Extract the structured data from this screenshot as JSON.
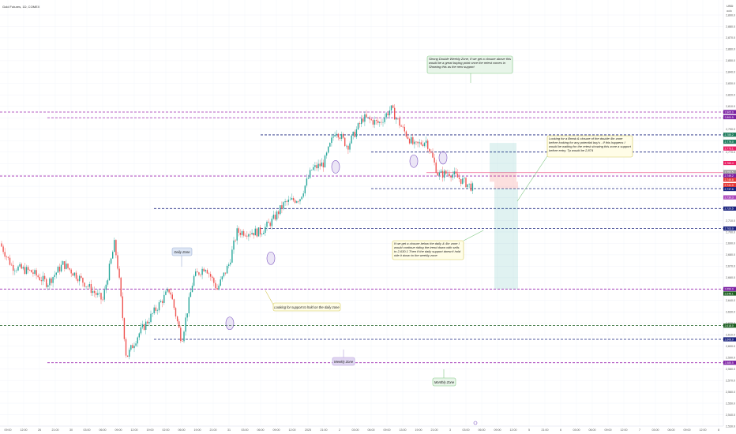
{
  "header": {
    "symbol": "Gold Futures, 1D, COMEX",
    "currency": "USD",
    "mode": "auto"
  },
  "colors": {
    "up": "#26a69a",
    "down": "#ef5350",
    "purple": "#9c27b0",
    "navy": "#1a237e",
    "green": "#1b5e20",
    "pink": "#e91e63",
    "note_yellow": "#fffde7",
    "note_green": "#e8f5e9",
    "note_purple": "#e1d7f2",
    "note_blue": "#dde6f5"
  },
  "chart_data": {
    "type": "candlestick",
    "y_ticks": [
      "2,890.0",
      "2,880.0",
      "2,870.0",
      "2,860.0",
      "2,850.0",
      "2,840.0",
      "2,830.0",
      "2,820.0",
      "2,810.0",
      "2,800.0",
      "2,790.0",
      "2,780.0",
      "2,770.0",
      "2,760.0",
      "2,750.0",
      "2,740.0",
      "2,730.0",
      "2,720.0",
      "2,710.0",
      "2,700.0",
      "2,690.0",
      "2,680.0",
      "2,670.0",
      "2,660.0",
      "2,650.0",
      "2,640.0",
      "2,630.0",
      "2,620.0",
      "2,610.0",
      "2,600.0",
      "2,590.0",
      "2,580.0",
      "2,570.0",
      "2,560.0",
      "2,550.0",
      "2,540.0",
      "2,530.0"
    ],
    "x_ticks": [
      "09:00",
      "12:00",
      "26",
      "21:00",
      "30",
      "03:00",
      "06:00",
      "09:00",
      "12:00",
      "19:00",
      "02:00",
      "06:00",
      "19:00",
      "21:00",
      "31",
      "03:00",
      "06:00",
      "09:00",
      "12:00",
      "2025",
      "21:00",
      "2",
      "03:00",
      "06:00",
      "09:00",
      "13:00",
      "19:00",
      "21:00",
      "3",
      "03:00",
      "06:00",
      "09:00",
      "12:00",
      "5",
      "21:00",
      "6",
      "03:00",
      "06:00",
      "09:00",
      "12:00",
      "7",
      "03:00",
      "06:00",
      "09:00",
      "12:00",
      "8"
    ],
    "candles_ohlc_summary": "intraday gold futures price rising from about 2,575 to 2,790 then declining to about 2,738",
    "zones": [
      {
        "price": 2805.0,
        "kind": "weekly",
        "color": "purple"
      },
      {
        "price": 2800.0,
        "kind": "daily-weekly",
        "color": "purple"
      },
      {
        "price": 2785.0,
        "kind": "level",
        "color": "navy"
      },
      {
        "price": 2770.0,
        "kind": "level",
        "color": "navy"
      },
      {
        "price": 2752.0,
        "kind": "4hr",
        "color": "pink"
      },
      {
        "price": 2749.0,
        "kind": "4hr",
        "color": "purple"
      },
      {
        "price": 2738.0,
        "kind": "daily",
        "color": "navy"
      },
      {
        "price": 2720.5,
        "kind": "daily",
        "color": "navy"
      },
      {
        "price": 2703.0,
        "kind": "daily",
        "color": "navy"
      },
      {
        "price": 2650.0,
        "kind": "weekly",
        "color": "purple"
      },
      {
        "price": 2618.0,
        "kind": "monthly",
        "color": "green"
      },
      {
        "price": 2606.0,
        "kind": "daily",
        "color": "navy"
      },
      {
        "price": 2585.5,
        "kind": "weekly",
        "color": "purple"
      }
    ],
    "price_badges": [
      {
        "text": "2,805.0",
        "color": "#7b1fa2"
      },
      {
        "text": "2,800.5",
        "color": "#7b1fa2"
      },
      {
        "text": "2,785.2",
        "color": "#1b7a5a"
      },
      {
        "text": "2,779.0",
        "color": "#1b7a5a"
      },
      {
        "text": "2,773.1",
        "color": "#e91e63"
      },
      {
        "text": "2,760.4",
        "color": "#e91e63"
      },
      {
        "text": "2,752.5",
        "color": "#9e9e9e"
      },
      {
        "text": "2,749.2",
        "color": "#7b1fa2"
      },
      {
        "text": "2,745.8",
        "color": "#e53935"
      },
      {
        "text": "2,741.0",
        "color": "#e53935"
      },
      {
        "text": "2,737.6",
        "color": "#1a237e"
      },
      {
        "text": "2,730.3",
        "color": "#ab47bc"
      },
      {
        "text": "2,720.5",
        "color": "#1a237e"
      },
      {
        "text": "2,703.0",
        "color": "#1a237e"
      },
      {
        "text": "2,650.0",
        "color": "#7b1fa2"
      },
      {
        "text": "2,646.1",
        "color": "#1b5e20"
      },
      {
        "text": "2,618.0",
        "color": "#1b5e20"
      },
      {
        "text": "2,606.0",
        "color": "#1a237e"
      },
      {
        "text": "2,585.5",
        "color": "#7b1fa2"
      }
    ]
  },
  "annotations": {
    "strong_double_weekly": "Strong Double Weekly Zone, If we get a closure above this would be a great buying point once the retest comes in Showing this as the new support",
    "break_4hr": "Looking for a Break & closure of the double 4hr zone before looking for any potential buy's . If this happens I would be waiting for the retest showing this zone a support before entry. Tp would be 2,874",
    "closure_below": "If we get a closure below the daily & 4hr zone I would continue riding the trend down with sells to 2,630.1 Then if the daily support doesn't hold ride it down to the weekly zone",
    "daily_zone": "Daily Zone",
    "support_hold": "Looking for support to hold on the daily zone",
    "weekly_zone": "Weekly Zone",
    "monthly_zone": "Monthly Zone"
  }
}
